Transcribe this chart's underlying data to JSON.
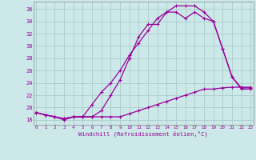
{
  "xlabel": "Windchill (Refroidissement éolien,°C)",
  "bg_color": "#cce8e8",
  "grid_color": "#aacccc",
  "line_color": "#990099",
  "x_ticks": [
    0,
    1,
    2,
    3,
    4,
    5,
    6,
    7,
    8,
    9,
    10,
    11,
    12,
    13,
    14,
    15,
    16,
    17,
    18,
    19,
    20,
    21,
    22,
    23
  ],
  "y_ticks": [
    18,
    20,
    22,
    24,
    26,
    28,
    30,
    32,
    34,
    36
  ],
  "xlim": [
    -0.3,
    23.3
  ],
  "ylim": [
    17.2,
    37.2
  ],
  "curve1_x": [
    0,
    1,
    2,
    3,
    4,
    5,
    6,
    7,
    8,
    9,
    10,
    11,
    12,
    13,
    14,
    15,
    16,
    17,
    18,
    19,
    20,
    21,
    22,
    23
  ],
  "curve1_y": [
    19.2,
    18.8,
    18.5,
    18.0,
    18.5,
    18.5,
    18.5,
    19.5,
    22.0,
    24.5,
    28.0,
    31.5,
    33.5,
    33.5,
    35.5,
    36.5,
    36.5,
    36.5,
    35.5,
    34.0,
    29.5,
    25.0,
    23.0,
    23.0
  ],
  "curve2_x": [
    0,
    1,
    2,
    3,
    4,
    5,
    6,
    7,
    8,
    9,
    10,
    11,
    12,
    13,
    14,
    15,
    16,
    17,
    18,
    19,
    20,
    21,
    22,
    23
  ],
  "curve2_y": [
    19.2,
    18.8,
    18.5,
    18.2,
    18.5,
    18.5,
    18.5,
    18.5,
    18.5,
    18.5,
    19.0,
    19.5,
    20.0,
    20.5,
    21.0,
    21.5,
    22.0,
    22.5,
    23.0,
    23.0,
    23.2,
    23.3,
    23.3,
    23.3
  ],
  "curve3_x": [
    0,
    1,
    2,
    3,
    4,
    5,
    6,
    7,
    8,
    9,
    10,
    11,
    12,
    13,
    14,
    15,
    16,
    17,
    18,
    19,
    20,
    21,
    22,
    23
  ],
  "curve3_y": [
    19.2,
    18.8,
    18.5,
    18.2,
    18.5,
    18.5,
    20.5,
    22.5,
    24.0,
    26.0,
    28.5,
    30.5,
    32.5,
    34.5,
    35.5,
    35.5,
    34.5,
    35.5,
    34.5,
    34.0,
    29.5,
    25.0,
    23.2,
    23.2
  ]
}
